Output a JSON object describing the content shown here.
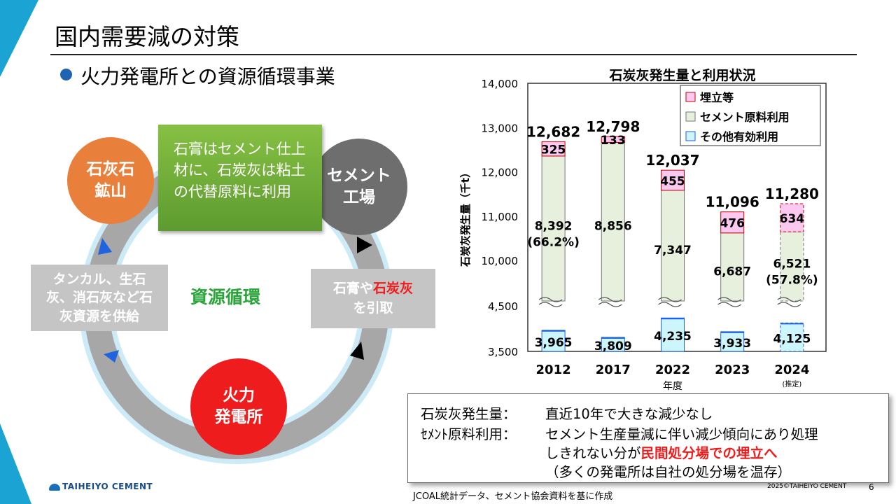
{
  "slide": {
    "title": "国内需要減の対策",
    "subtitle": "火力発電所との資源循環事業",
    "page_number": "6",
    "copyright": "2025©TAIHEIYO CEMENT",
    "source_note": "JCOAL統計データ、セメント協会資料を基に作成",
    "logo_text": "TAIHEIYO CEMENT"
  },
  "cycle": {
    "node_mine_l1": "石灰石",
    "node_mine_l2": "鉱山",
    "node_cement_l1": "セメント",
    "node_cement_l2": "工場",
    "node_power_l1": "火力",
    "node_power_l2": "発電所",
    "green_box": "石膏はセメント仕上材に、石炭灰は粘土の代替原料に利用",
    "left_box": "タンカル、生石灰、消石灰など石灰資源を供給",
    "right_box_a": "石膏や",
    "right_box_b": "石炭灰",
    "right_box_c": "を引取",
    "center_label": "資源循環"
  },
  "chart_data": {
    "type": "bar",
    "title": "石炭灰発生量と利用状況",
    "ylabel": "石炭灰発生量（千t）",
    "xlabel": "年度",
    "y_ticks": [
      "3,500",
      "4,500",
      "10,000",
      "11,000",
      "12,000",
      "13,000",
      "14,000"
    ],
    "y_axis_break": true,
    "categories": [
      "2012",
      "2017",
      "2022",
      "2023",
      "2024"
    ],
    "category_notes": [
      "",
      "",
      "",
      "",
      "(推定)"
    ],
    "series": [
      {
        "name": "その他有効利用",
        "color": "#ccf5fc",
        "values": [
          3965,
          3809,
          4235,
          3933,
          4125
        ],
        "labels": [
          "3,965",
          "3,809",
          "4,235",
          "3,933",
          "4,125"
        ]
      },
      {
        "name": "セメント原料利用",
        "color": "#e6f0dc",
        "values": [
          8392,
          8856,
          7347,
          6687,
          6521
        ],
        "labels": [
          "8,392",
          "8,856",
          "7,347",
          "6,687",
          "6,521"
        ],
        "share_labels": [
          "(66.2%)",
          "",
          "",
          "",
          "(57.8%)"
        ]
      },
      {
        "name": "埋立等",
        "color": "#fbc8f0",
        "values": [
          325,
          133,
          455,
          476,
          634
        ],
        "labels": [
          "325",
          "133",
          "455",
          "476",
          "634"
        ]
      }
    ],
    "totals": [
      "12,682",
      "12,798",
      "12,037",
      "11,096",
      "11,280"
    ],
    "legend_position": "top-right",
    "estimated_dashed": [
      false,
      false,
      false,
      false,
      true
    ]
  },
  "notes": {
    "row1_label": "石炭灰発生量：",
    "row1_text": "直近10年で大きな減少なし",
    "row2_label": "ｾﾒﾝﾄ原料利用：",
    "row2_text": "セメント生産量減に伴い減少傾向にあり処理",
    "row3_text_a": "しきれない分が",
    "row3_text_red": "民間処分場での埋立へ",
    "row4_text": "（多くの発電所は自社の処分場を温存）"
  }
}
